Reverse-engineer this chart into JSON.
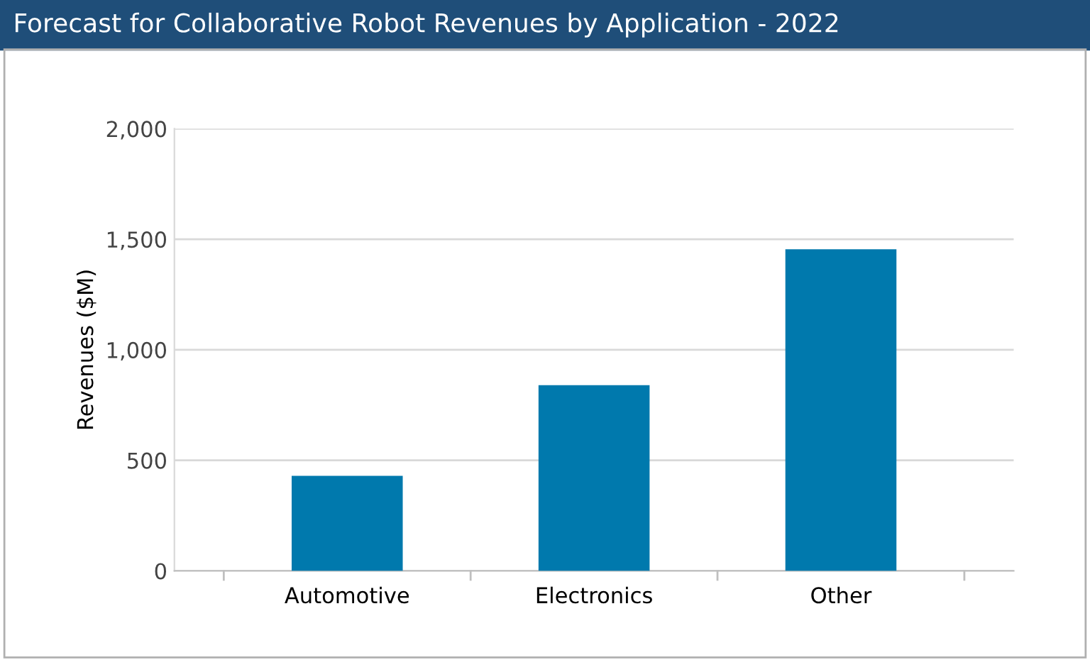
{
  "chart_data": {
    "type": "bar",
    "title": "Forecast for Collaborative Robot Revenues by Application - 2022",
    "ylabel": "Revenues ($M)",
    "categories": [
      "Automotive",
      "Electronics",
      "Other"
    ],
    "values": [
      430,
      840,
      1455
    ],
    "color": "#0079ad",
    "ylim": [
      0,
      2000
    ],
    "yticks": [
      {
        "value": 0,
        "label": "0"
      },
      {
        "value": 500,
        "label": "500"
      },
      {
        "value": 1000,
        "label": "1,000"
      },
      {
        "value": 1500,
        "label": "1,500"
      },
      {
        "value": 2000,
        "label": "2,000"
      }
    ],
    "grid": "y"
  }
}
